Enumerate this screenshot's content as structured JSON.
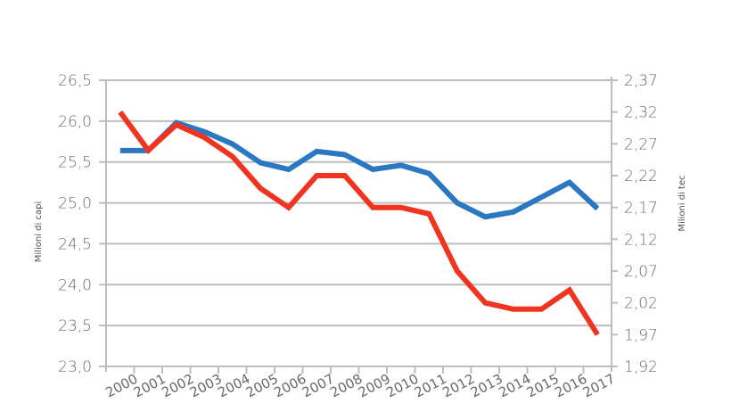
{
  "chart_data": {
    "type": "line",
    "title": "",
    "xlabel": "",
    "ylabel": "Milioni di capi",
    "y2label": "Milioni di tec",
    "ylim": [
      23.0,
      26.5
    ],
    "y2lim": [
      1.92,
      2.37
    ],
    "grid": true,
    "legend": "none",
    "categories": [
      "2000",
      "2001",
      "2002",
      "2003",
      "2004",
      "2005",
      "2006",
      "2007",
      "2008",
      "2009",
      "2010",
      "2011",
      "2012",
      "2013",
      "2014",
      "2015",
      "2016",
      "2017"
    ],
    "yticks": [
      "26,5",
      "26,0",
      "25,5",
      "25,0",
      "24,5",
      "24,0",
      "23,5",
      "23,0"
    ],
    "y2ticks": [
      "2,37",
      "2,32",
      "2,27",
      "2,22",
      "2,17",
      "2,12",
      "2,07",
      "2,02",
      "1,97",
      "1,92"
    ],
    "series": [
      {
        "name": "Milioni di capi",
        "axis": "left",
        "color": "#2a78c2",
        "values": [
          25.64,
          25.64,
          25.98,
          25.87,
          25.72,
          25.49,
          25.41,
          25.63,
          25.59,
          25.41,
          25.46,
          25.36,
          25.0,
          24.83,
          24.89,
          25.07,
          25.25,
          24.93
        ]
      },
      {
        "name": "Milioni di tec",
        "axis": "right",
        "color": "#f0341f",
        "values": [
          2.32,
          2.26,
          2.3,
          2.28,
          2.25,
          2.2,
          2.17,
          2.22,
          2.22,
          2.17,
          2.17,
          2.16,
          2.07,
          2.02,
          2.01,
          2.01,
          2.04,
          1.97
        ]
      }
    ]
  },
  "axes": {
    "left_title": "Milioni di capi",
    "right_title": "Milioni di tec"
  }
}
